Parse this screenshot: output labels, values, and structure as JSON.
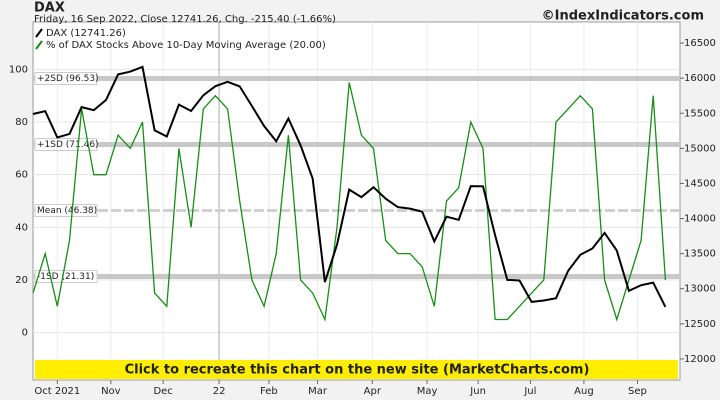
{
  "chart_data": {
    "type": "line",
    "title": "DAX",
    "subtitle": "Friday, 16 Sep 2022, Close 12741.26, Chg. -215.40 (-1.66%)",
    "brand": "©IndexIndicators.com",
    "banner": "Click to recreate this chart on the new site (MarketCharts.com)",
    "xlim": [
      0,
      53.2
    ],
    "xticks": [
      {
        "value": 2,
        "label": "Oct 2021"
      },
      {
        "value": 6.4,
        "label": "Nov"
      },
      {
        "value": 10.7,
        "label": "Dec"
      },
      {
        "value": 15.3,
        "label": "22"
      },
      {
        "value": 19.4,
        "label": "Feb"
      },
      {
        "value": 23.4,
        "label": "Mar"
      },
      {
        "value": 27.9,
        "label": "Apr"
      },
      {
        "value": 32.4,
        "label": "May"
      },
      {
        "value": 36.6,
        "label": "Jun"
      },
      {
        "value": 40.9,
        "label": "Jul"
      },
      {
        "value": 45.3,
        "label": "Aug"
      },
      {
        "value": 49.7,
        "label": "Sep"
      }
    ],
    "ylim": [
      -18,
      118
    ],
    "yticks": [
      0,
      20,
      40,
      60,
      80,
      100
    ],
    "y2lim": [
      11700,
      16800
    ],
    "y2ticks": [
      12000,
      12500,
      13000,
      13500,
      14000,
      14500,
      15000,
      15500,
      16000,
      16500
    ],
    "grid": true,
    "reference_lines": [
      {
        "label": "+2SD (96.53)",
        "value": 96.53
      },
      {
        "label": "+1SD (71.46)",
        "value": 71.46
      },
      {
        "label": "Mean (46.38)",
        "value": 46.38
      },
      {
        "label": "-1SD (21.31)",
        "value": 21.31
      }
    ],
    "series": [
      {
        "name": "DAX (12741.26)",
        "color": "#000000",
        "axis": "y2",
        "values": [
          15490,
          15531,
          15156,
          15206,
          15587,
          15543,
          15689,
          16054,
          16094,
          16160,
          15257,
          15169,
          15623,
          15532,
          15756,
          15885,
          15948,
          15883,
          15604,
          15318,
          15100,
          15425,
          15042,
          14567,
          13094,
          13628,
          14413,
          14306,
          14446,
          14283,
          14163,
          14142,
          14098,
          13674,
          14027,
          13982,
          14462,
          14460,
          13762,
          13126,
          13118,
          12813,
          12833,
          12865,
          13254,
          13484,
          13574,
          13795,
          13544,
          12971,
          13050,
          13088,
          12741
        ]
      },
      {
        "name": "% of DAX Stocks Above 10-Day Moving Average (20.00)",
        "color": "#1a8c1a",
        "values": [
          15,
          30,
          10,
          35,
          85,
          60,
          60,
          75,
          70,
          80,
          15,
          10,
          70,
          40,
          85,
          90,
          85,
          50,
          20,
          10,
          30,
          75,
          20,
          15,
          5,
          40,
          95,
          75,
          70,
          35,
          30,
          30,
          25,
          10,
          50,
          55,
          80,
          70,
          5,
          5,
          10,
          15,
          20,
          80,
          85,
          90,
          85,
          20,
          5,
          20,
          35,
          90,
          20
        ]
      }
    ]
  }
}
